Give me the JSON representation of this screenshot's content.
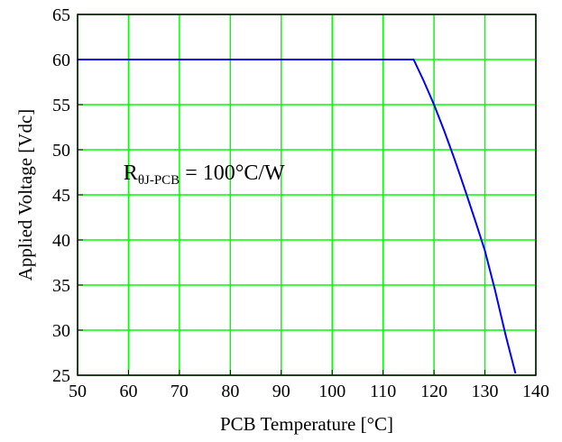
{
  "chart_data": {
    "type": "line",
    "title": "",
    "xlabel": "PCB Temperature [°C]",
    "ylabel": "Applied Voltage [Vdc]",
    "xlim": [
      50,
      140
    ],
    "ylim": [
      25,
      65
    ],
    "xticks": [
      "50",
      "60",
      "70",
      "80",
      "90",
      "100",
      "110",
      "120",
      "130",
      "140"
    ],
    "yticks": [
      "25",
      "30",
      "35",
      "40",
      "45",
      "50",
      "55",
      "60",
      "65"
    ],
    "grid": true,
    "colors": {
      "grid": "#00ff00",
      "line": "#0000ff",
      "axes": "#000000"
    },
    "series": [
      {
        "x": [
          50,
          116,
          118,
          120,
          122,
          124,
          126,
          128,
          130,
          132,
          134,
          136
        ],
        "y": [
          60,
          60,
          57.6,
          55,
          52.1,
          49.0,
          45.7,
          42.3,
          38.8,
          34.4,
          29.6,
          25.2
        ]
      }
    ],
    "annotations": [
      {
        "main": "R",
        "sub": "θJ-PCB",
        "rest": " = 100°C/W",
        "x": 59,
        "y": 47.5
      }
    ]
  }
}
